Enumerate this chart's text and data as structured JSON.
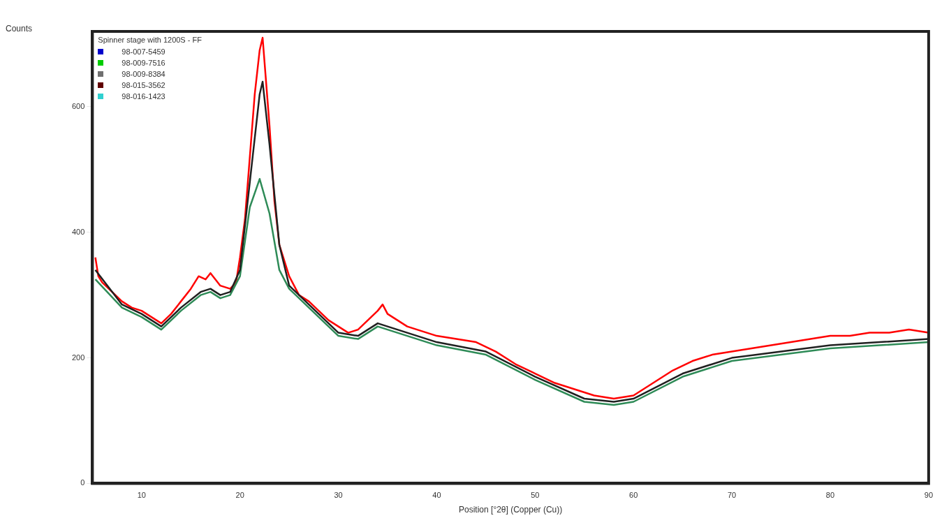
{
  "chart_data": {
    "type": "line",
    "xlabel": "Position [°2θ] (Copper (Cu))",
    "ylabel": "Counts",
    "legend_title": "Spinner stage with 1200S - FF",
    "xlim": [
      5,
      90
    ],
    "xticks": [
      10,
      20,
      30,
      40,
      50,
      60,
      70,
      80,
      90
    ],
    "ylim": [
      0,
      720
    ],
    "yticks": [
      0,
      200,
      400,
      600
    ],
    "grid": false,
    "legend": "top left",
    "marker": "none",
    "line_style": "solid",
    "series": [
      {
        "color": "#ff0000",
        "x": [
          5.3,
          5.6,
          6,
          7,
          8,
          9,
          10,
          11,
          12,
          13,
          14,
          15,
          15.8,
          16.5,
          17,
          18,
          19,
          19.6,
          20,
          20.5,
          21,
          21.5,
          22,
          22.3,
          22.6,
          23,
          23.5,
          24,
          25,
          26,
          27,
          28,
          29,
          30,
          31,
          32,
          33,
          34,
          34.5,
          35,
          36,
          37,
          38,
          40,
          42,
          44,
          46,
          48,
          50,
          52,
          54,
          56,
          58,
          60,
          62,
          64,
          66,
          68,
          70,
          72,
          74,
          76,
          78,
          80,
          82,
          84,
          86,
          88,
          90
        ],
        "values": [
          360,
          330,
          320,
          305,
          290,
          280,
          275,
          265,
          255,
          270,
          290,
          310,
          330,
          325,
          335,
          315,
          310,
          320,
          360,
          420,
          520,
          620,
          690,
          710,
          650,
          570,
          450,
          380,
          330,
          300,
          290,
          275,
          260,
          250,
          240,
          245,
          260,
          275,
          285,
          270,
          260,
          250,
          245,
          235,
          230,
          225,
          210,
          190,
          175,
          160,
          150,
          140,
          135,
          140,
          160,
          180,
          195,
          205,
          210,
          215,
          220,
          225,
          230,
          235,
          235,
          240,
          240,
          245,
          240
        ]
      },
      {
        "color": "#2e8b57",
        "x": [
          5.3,
          8,
          10,
          12,
          14,
          16,
          17,
          18,
          19,
          20,
          21,
          22,
          23,
          24,
          25,
          30,
          32,
          34,
          36,
          40,
          45,
          50,
          55,
          58,
          60,
          65,
          70,
          75,
          80,
          85,
          90
        ],
        "values": [
          325,
          280,
          265,
          245,
          275,
          300,
          305,
          295,
          300,
          330,
          440,
          485,
          430,
          340,
          310,
          235,
          230,
          250,
          240,
          220,
          205,
          165,
          130,
          125,
          130,
          170,
          195,
          205,
          215,
          220,
          225
        ]
      },
      {
        "color": "#202020",
        "x": [
          5.3,
          8,
          10,
          12,
          14,
          16,
          17,
          18,
          19,
          20,
          21,
          22,
          22.3,
          23,
          24,
          25,
          30,
          32,
          34,
          36,
          40,
          45,
          50,
          55,
          58,
          60,
          65,
          70,
          75,
          80,
          85,
          90
        ],
        "values": [
          340,
          285,
          270,
          250,
          280,
          305,
          310,
          300,
          305,
          340,
          480,
          620,
          640,
          540,
          380,
          315,
          240,
          235,
          255,
          245,
          225,
          210,
          170,
          135,
          130,
          135,
          175,
          200,
          210,
          220,
          225,
          230
        ]
      },
      {
        "name": "98-007-5459",
        "color": "#0000cc"
      },
      {
        "name": "98-009-7516",
        "color": "#00cc00"
      },
      {
        "name": "98-009-8384",
        "color": "#707070"
      },
      {
        "name": "98-015-3562",
        "color": "#600000"
      },
      {
        "name": "98-016-1423",
        "color": "#30d0d0"
      }
    ]
  }
}
